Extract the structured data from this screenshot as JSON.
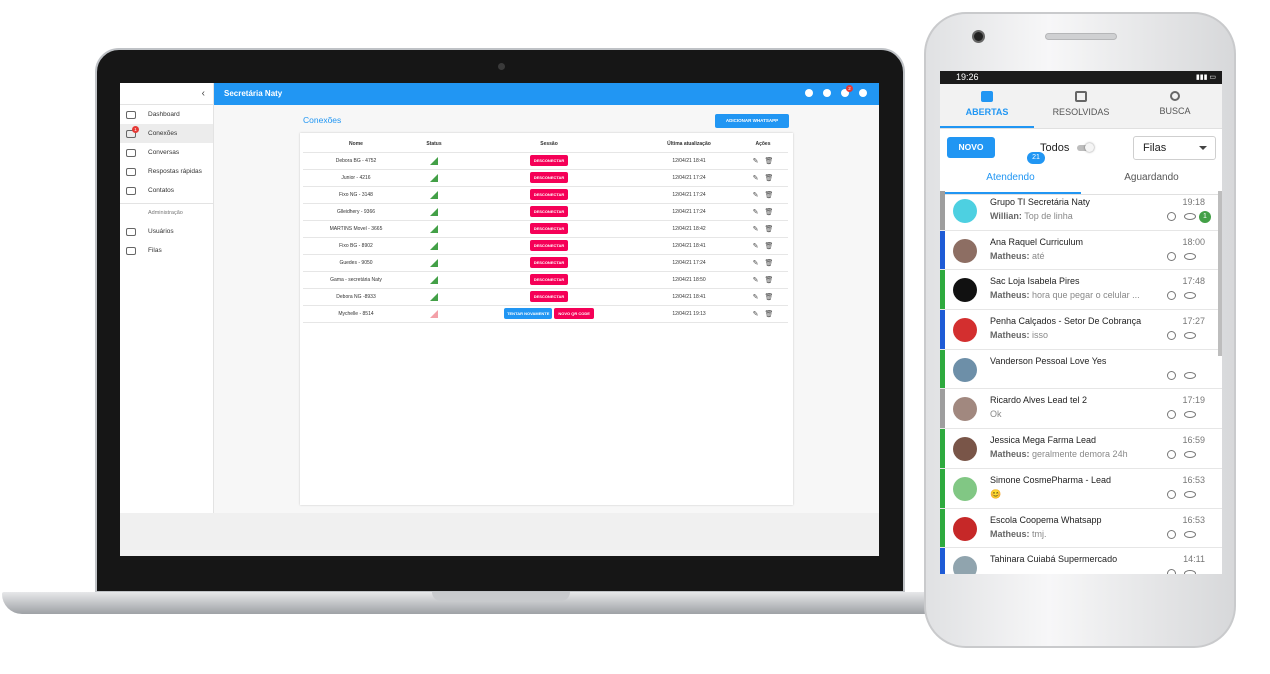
{
  "desktop": {
    "appbar_title": "Secretária Naty",
    "notification_badge": "2",
    "nav": [
      {
        "label": "Dashboard",
        "icon": "dashboard-icon"
      },
      {
        "label": "Conexões",
        "icon": "connections-icon",
        "badge": "1"
      },
      {
        "label": "Conversas",
        "icon": "whatsapp-icon"
      },
      {
        "label": "Respostas rápidas",
        "icon": "quick-reply-icon"
      },
      {
        "label": "Contatos",
        "icon": "contacts-icon"
      },
      {
        "label": "Usuários",
        "icon": "users-icon"
      },
      {
        "label": "Filas",
        "icon": "queues-icon"
      }
    ],
    "nav_section": "Administração",
    "page_title": "Conexões",
    "add_button": "ADICIONAR WHATSAPP",
    "table": {
      "headers": [
        "Nome",
        "Status",
        "Sessão",
        "Última atualização",
        "Ações"
      ],
      "rows": [
        {
          "nome": "Debora BG - 4752",
          "status": "connected",
          "sessao": "DESCONECTAR",
          "data": "12/04/21 18:41"
        },
        {
          "nome": "Junior - 4216",
          "status": "connected",
          "sessao": "DESCONECTAR",
          "data": "12/04/21 17:24"
        },
        {
          "nome": "Fixo NG - 3148",
          "status": "connected",
          "sessao": "DESCONECTAR",
          "data": "12/04/21 17:24"
        },
        {
          "nome": "Glleidhery - 9366",
          "status": "connected",
          "sessao": "DESCONECTAR",
          "data": "12/04/21 17:24"
        },
        {
          "nome": "MARTINS Movel - 3665",
          "status": "connected",
          "sessao": "DESCONECTAR",
          "data": "12/04/21 18:42"
        },
        {
          "nome": "Fixo BG - 8902",
          "status": "connected",
          "sessao": "DESCONECTAR",
          "data": "12/04/21 18:41"
        },
        {
          "nome": "Guedes - 9050",
          "status": "connected",
          "sessao": "DESCONECTAR",
          "data": "12/04/21 17:24"
        },
        {
          "nome": "Gama - secretária Naty",
          "status": "connected",
          "sessao": "DESCONECTAR",
          "data": "12/04/21 18:50"
        },
        {
          "nome": "Debora NG -8933",
          "status": "connected",
          "sessao": "DESCONECTAR",
          "data": "12/04/21 18:41"
        },
        {
          "nome": "Mychelle - 8514",
          "status": "disconnected",
          "retry": "TENTAR NOVAMENTE",
          "qr": "NOVO QR CODE",
          "data": "12/04/21 19:13"
        }
      ]
    }
  },
  "mobile": {
    "status_time": "19:26",
    "tabs": [
      "ABERTAS",
      "RESOLVIDAS",
      "BUSCA"
    ],
    "new_button": "NOVO",
    "todos_label": "Todos",
    "filas_label": "Filas",
    "subtabs": [
      "Atendendo",
      "Aguardando"
    ],
    "atendendo_count": "21",
    "tickets": [
      {
        "name": "Grupo TI Secretária Naty",
        "time": "19:18",
        "sender": "Willian:",
        "msg": " Top de linha",
        "unread": "1",
        "bar": "#9e9e9e",
        "avatar": "#4dd0e1"
      },
      {
        "name": "Ana Raquel Curriculum",
        "time": "18:00",
        "sender": "Matheus:",
        "msg": " até",
        "bar": "#1e5bd6",
        "avatar": "#8d6e63"
      },
      {
        "name": "Sac Loja Isabela Pires",
        "time": "17:48",
        "sender": "Matheus:",
        "msg": " hora que pegar o celular ...",
        "bar": "#2eaa3e",
        "avatar": "#111111"
      },
      {
        "name": "Penha Calçados - Setor De Cobrança",
        "time": "17:27",
        "sender": "Matheus:",
        "msg": " isso",
        "bar": "#1e5bd6",
        "avatar": "#d32f2f"
      },
      {
        "name": "Vanderson Pessoal Love Yes",
        "time": "",
        "sender": "",
        "msg": "",
        "bar": "#2eaa3e",
        "avatar": "#6d8fa8"
      },
      {
        "name": "Ricardo Alves Lead tel 2",
        "time": "17:19",
        "sender": "",
        "msg": "Ok",
        "bar": "#9e9e9e",
        "avatar": "#a1887f"
      },
      {
        "name": "Jessica Mega Farma Lead",
        "time": "16:59",
        "sender": "Matheus:",
        "msg": " geralmente demora 24h",
        "bar": "#2eaa3e",
        "avatar": "#795548"
      },
      {
        "name": "Simone CosmePharma - Lead",
        "time": "16:53",
        "sender": "",
        "msg": "😊",
        "bar": "#2eaa3e",
        "avatar": "#81c784"
      },
      {
        "name": "Escola Coopema Whatsapp",
        "time": "16:53",
        "sender": "Matheus:",
        "msg": " tmj.",
        "bar": "#2eaa3e",
        "avatar": "#c62828"
      },
      {
        "name": "Tahinara Cuiabá Supermercado",
        "time": "14:11",
        "sender": "",
        "msg": "",
        "bar": "#1e5bd6",
        "avatar": "#90a4ae"
      }
    ]
  }
}
